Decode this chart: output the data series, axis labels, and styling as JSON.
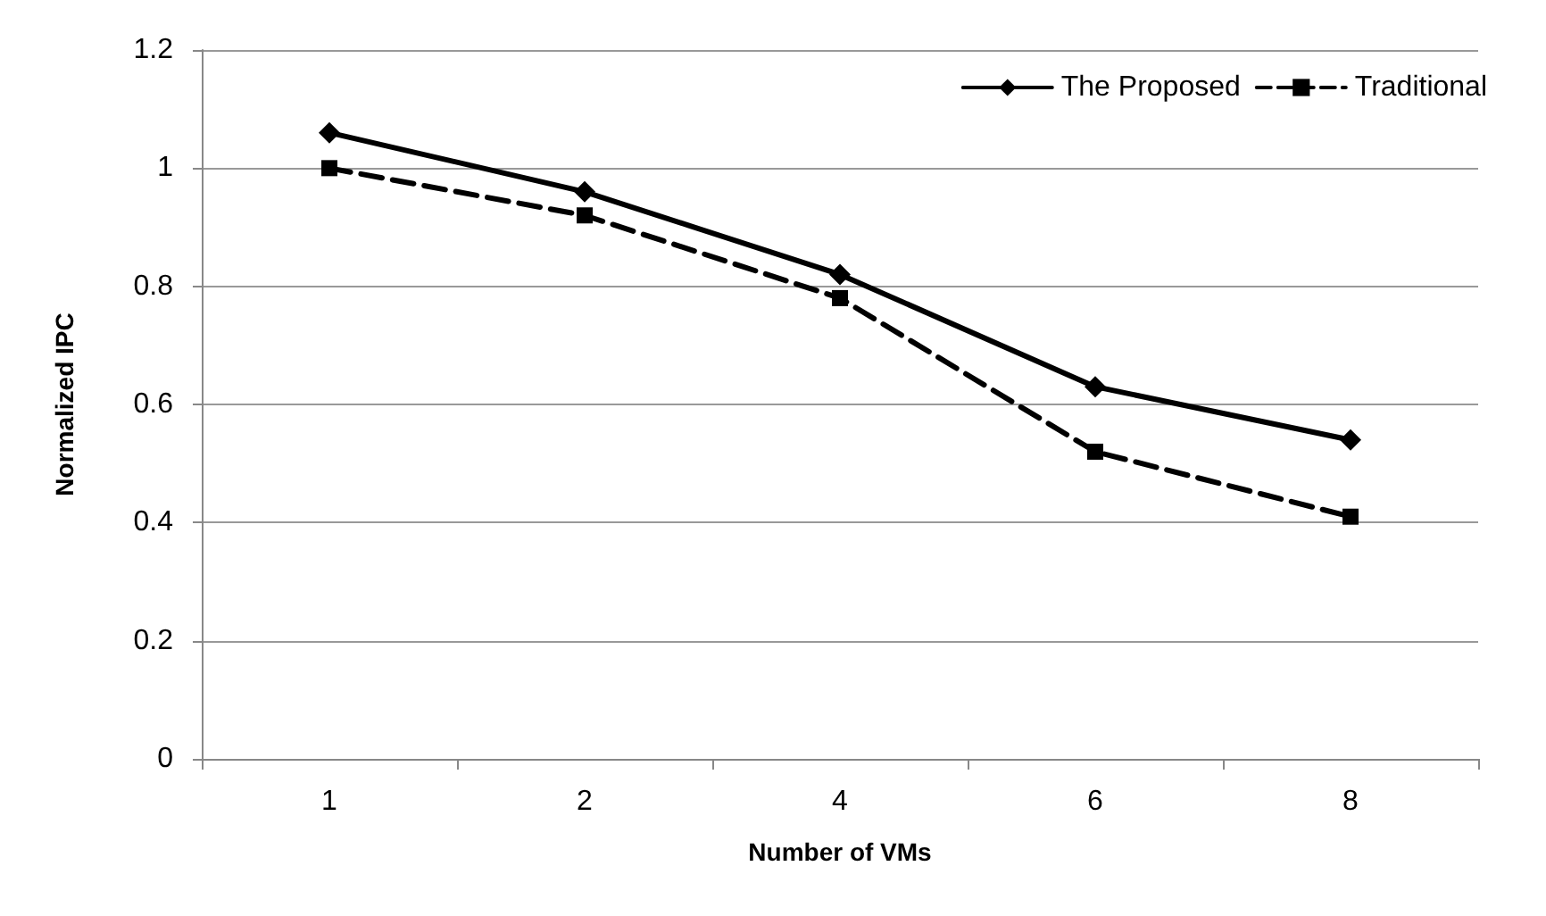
{
  "chart_data": {
    "type": "line",
    "xlabel": "Number of VMs",
    "ylabel": "Normalized IPC",
    "categories": [
      "1",
      "2",
      "4",
      "6",
      "8"
    ],
    "series": [
      {
        "name": "The Proposed",
        "color": "#000000",
        "marker": "diamond",
        "line_style": "solid",
        "values": [
          1.06,
          0.96,
          0.82,
          0.63,
          0.54
        ]
      },
      {
        "name": "Traditional",
        "color": "#000000",
        "marker": "square",
        "line_style": "dashed",
        "values": [
          1.0,
          0.92,
          0.78,
          0.52,
          0.41
        ]
      }
    ],
    "ylim": [
      0,
      1.2
    ],
    "yticks": [
      0,
      0.2,
      0.4,
      0.6,
      0.8,
      1,
      1.2
    ],
    "grid": "y",
    "legend": "top right"
  }
}
